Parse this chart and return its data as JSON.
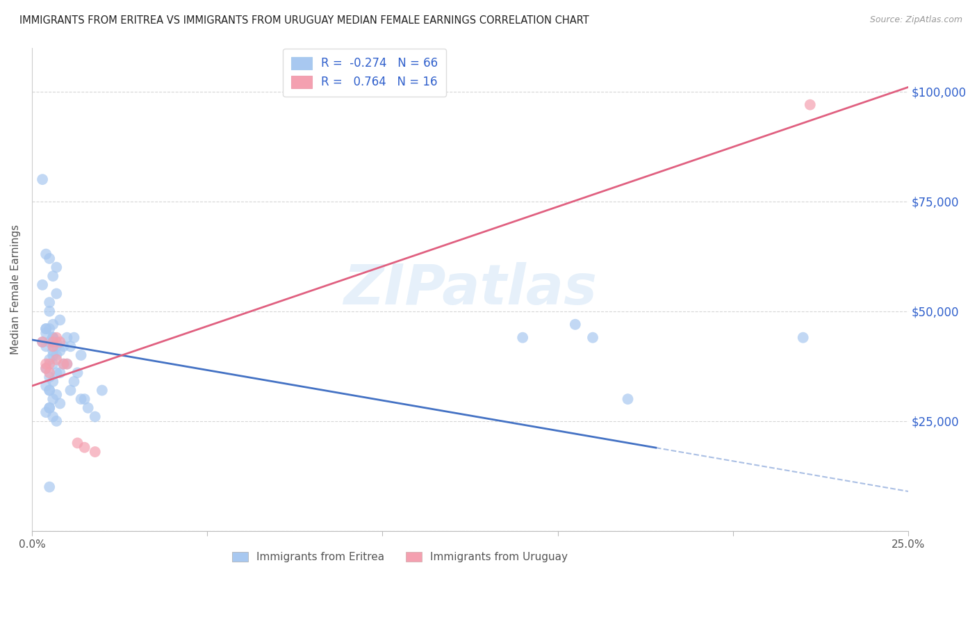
{
  "title": "IMMIGRANTS FROM ERITREA VS IMMIGRANTS FROM URUGUAY MEDIAN FEMALE EARNINGS CORRELATION CHART",
  "source": "Source: ZipAtlas.com",
  "ylabel": "Median Female Earnings",
  "xlim": [
    0.0,
    0.25
  ],
  "ylim": [
    0,
    110000
  ],
  "yticks": [
    0,
    25000,
    50000,
    75000,
    100000
  ],
  "xticks": [
    0.0,
    0.05,
    0.1,
    0.15,
    0.2,
    0.25
  ],
  "xtick_labels": [
    "0.0%",
    "",
    "",
    "",
    "",
    "25.0%"
  ],
  "r_eritrea": -0.274,
  "n_eritrea": 66,
  "r_uruguay": 0.764,
  "n_uruguay": 16,
  "legend_eritrea": "Immigrants from Eritrea",
  "legend_uruguay": "Immigrants from Uruguay",
  "color_eritrea": "#a8c8f0",
  "color_uruguay": "#f4a0b0",
  "color_line_eritrea": "#4472c4",
  "color_line_uruguay": "#e06080",
  "color_axis_right": "#3060cc",
  "background_color": "#ffffff",
  "eritrea_line_x0": 0.0,
  "eritrea_line_y0": 43500,
  "eritrea_line_x1": 0.25,
  "eritrea_line_y1": 9000,
  "eritrea_line_solid_end": 0.178,
  "uruguay_line_x0": 0.0,
  "uruguay_line_y0": 33000,
  "uruguay_line_x1": 0.25,
  "uruguay_line_y1": 101000,
  "eritrea_x": [
    0.006,
    0.004,
    0.005,
    0.003,
    0.007,
    0.005,
    0.004,
    0.006,
    0.007,
    0.005,
    0.008,
    0.006,
    0.005,
    0.004,
    0.006,
    0.003,
    0.005,
    0.007,
    0.006,
    0.004,
    0.008,
    0.007,
    0.005,
    0.006,
    0.004,
    0.007,
    0.005,
    0.006,
    0.004,
    0.005,
    0.007,
    0.006,
    0.008,
    0.005,
    0.004,
    0.006,
    0.007,
    0.005,
    0.009,
    0.006,
    0.01,
    0.008,
    0.012,
    0.011,
    0.009,
    0.013,
    0.01,
    0.011,
    0.014,
    0.012,
    0.015,
    0.016,
    0.018,
    0.014,
    0.02,
    0.155,
    0.14,
    0.16,
    0.22,
    0.17,
    0.003,
    0.005,
    0.007,
    0.006,
    0.004,
    0.005
  ],
  "eritrea_y": [
    44000,
    46000,
    52000,
    56000,
    60000,
    62000,
    63000,
    58000,
    54000,
    50000,
    48000,
    47000,
    46000,
    45000,
    44000,
    43000,
    43000,
    42000,
    41000,
    42000,
    41000,
    40000,
    39000,
    38000,
    37000,
    36000,
    35000,
    34000,
    33000,
    32000,
    31000,
    30000,
    29000,
    28000,
    27000,
    26000,
    25000,
    32000,
    42000,
    40000,
    38000,
    36000,
    34000,
    32000,
    38000,
    36000,
    44000,
    42000,
    40000,
    44000,
    30000,
    28000,
    26000,
    30000,
    32000,
    47000,
    44000,
    44000,
    44000,
    30000,
    80000,
    10000,
    43000,
    44000,
    46000,
    28000
  ],
  "uruguay_x": [
    0.003,
    0.004,
    0.005,
    0.004,
    0.005,
    0.006,
    0.006,
    0.007,
    0.007,
    0.008,
    0.009,
    0.01,
    0.013,
    0.015,
    0.018,
    0.222
  ],
  "uruguay_y": [
    43000,
    38000,
    38000,
    37000,
    36000,
    43000,
    42000,
    39000,
    44000,
    43000,
    38000,
    38000,
    20000,
    19000,
    18000,
    97000
  ]
}
